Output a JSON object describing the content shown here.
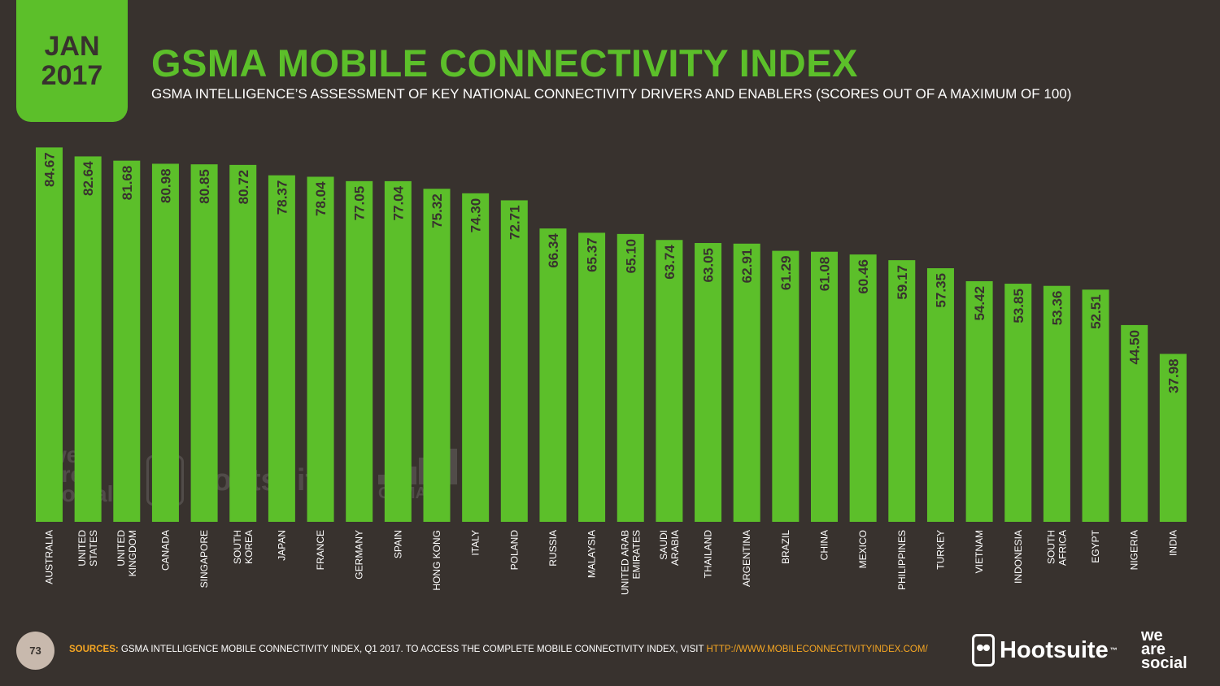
{
  "badge": {
    "month": "JAN",
    "year": "2017"
  },
  "header": {
    "title": "GSMA MOBILE CONNECTIVITY INDEX",
    "subtitle": "GSMA INTELLIGENCE’S ASSESSMENT OF KEY NATIONAL CONNECTIVITY DRIVERS AND ENABLERS (SCORES OUT OF A MAXIMUM OF 100)"
  },
  "colors": {
    "background": "#38322e",
    "bar": "#5cbf2a",
    "value_text": "#38322e",
    "label_text": "#ffffff",
    "accent": "#f5a623"
  },
  "chart_data": {
    "type": "bar",
    "title": "GSMA MOBILE CONNECTIVITY INDEX",
    "xlabel": "",
    "ylabel": "",
    "ylim": [
      0,
      100
    ],
    "categories": [
      [
        "AUSTRALIA"
      ],
      [
        "UNITED",
        "STATES"
      ],
      [
        "UNITED",
        "KINGDOM"
      ],
      [
        "CANADA"
      ],
      [
        "SINGAPORE"
      ],
      [
        "SOUTH",
        "KOREA"
      ],
      [
        "JAPAN"
      ],
      [
        "FRANCE"
      ],
      [
        "GERMANY"
      ],
      [
        "SPAIN"
      ],
      [
        "HONG KONG"
      ],
      [
        "ITALY"
      ],
      [
        "POLAND"
      ],
      [
        "RUSSIA"
      ],
      [
        "MALAYSIA"
      ],
      [
        "UNITED ARAB",
        "EMIRATES"
      ],
      [
        "SAUDI",
        "ARABIA"
      ],
      [
        "THAILAND"
      ],
      [
        "ARGENTINA"
      ],
      [
        "BRAZIL"
      ],
      [
        "CHINA"
      ],
      [
        "MEXICO"
      ],
      [
        "PHILIPPINES"
      ],
      [
        "TURKEY"
      ],
      [
        "VIETNAM"
      ],
      [
        "INDONESIA"
      ],
      [
        "SOUTH",
        "AFRICA"
      ],
      [
        "EGYPT"
      ],
      [
        "NIGERIA"
      ],
      [
        "INDIA"
      ]
    ],
    "values": [
      84.67,
      82.64,
      81.68,
      80.98,
      80.85,
      80.72,
      78.37,
      78.04,
      77.05,
      77.04,
      75.32,
      74.3,
      72.71,
      66.34,
      65.37,
      65.1,
      63.74,
      63.05,
      62.91,
      61.29,
      61.08,
      60.46,
      59.17,
      57.35,
      54.42,
      53.85,
      53.36,
      52.51,
      44.5,
      37.98
    ],
    "value_labels": [
      "84.67",
      "82.64",
      "81.68",
      "80.98",
      "80.85",
      "80.72",
      "78.37",
      "78.04",
      "77.05",
      "77.04",
      "75.32",
      "74.30",
      "72.71",
      "66.34",
      "65.37",
      "65.10",
      "63.74",
      "63.05",
      "62.91",
      "61.29",
      "61.08",
      "60.46",
      "59.17",
      "57.35",
      "54.42",
      "53.85",
      "53.36",
      "52.51",
      "44.50",
      "37.98"
    ]
  },
  "watermarks": {
    "wearesocial": [
      "we",
      "are",
      "social"
    ],
    "hootsuite": "Hootsuite",
    "gsma": "GSMA"
  },
  "footer": {
    "page_number": "73",
    "sources_label": "SOURCES:",
    "sources_text": "GSMA INTELLIGENCE MOBILE CONNECTIVITY INDEX, Q1 2017. TO ACCESS THE COMPLETE MOBILE CONNECTIVITY INDEX, VISIT ",
    "sources_link": "HTTP://WWW.MOBILECONNECTIVITYINDEX.COM/",
    "hootsuite_logo": "Hootsuite",
    "trademark": "™",
    "wearesocial_logo": [
      "we",
      "are",
      "social"
    ]
  }
}
